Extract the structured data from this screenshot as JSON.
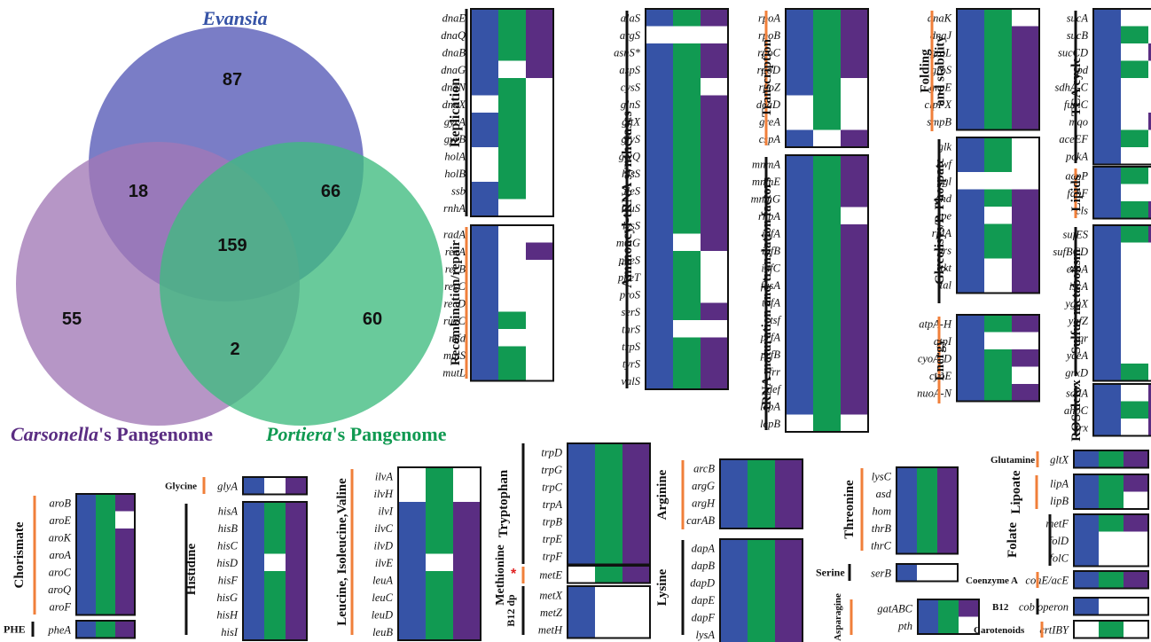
{
  "colors": {
    "evansia": "#3653a6",
    "portiera": "#119a52",
    "carsonella": "#5a2d82",
    "empty": "#ffffff",
    "border": "#111111",
    "accent": "#f07f3a",
    "venn_evansia": "#6b6fc0",
    "venn_carsonella": "#a279b6",
    "venn_portiera": "#3fbb7f"
  },
  "venn": {
    "labels": {
      "evansia": "Evansia",
      "carsonella_italic": "Carsonella",
      "carsonella_rest": "'s Pangenome",
      "portiera_italic": "Portiera",
      "portiera_rest": "'s Pangenome"
    },
    "counts": {
      "evansia_only": "87",
      "evansia_carsonella": "18",
      "evansia_portiera": "66",
      "all_three": "159",
      "carsonella_only": "55",
      "portiera_only": "60",
      "carsonella_portiera": "2"
    }
  },
  "pathways": [
    {
      "category": "Replication",
      "bar": "black",
      "genes": [
        [
          "dnaE",
          "EPC"
        ],
        [
          "dnaQ",
          "EPC"
        ],
        [
          "dnaB",
          "EPC"
        ],
        [
          "dnaG",
          "E_C"
        ],
        [
          "dnaN",
          "EP_"
        ],
        [
          "dnaX",
          "_P_"
        ],
        [
          "gyrA",
          "EP_"
        ],
        [
          "gyrB",
          "EP_"
        ],
        [
          "holA",
          "_P_"
        ],
        [
          "holB",
          "_P_"
        ],
        [
          "ssb",
          "EP_"
        ],
        [
          "rnhA",
          "E__"
        ]
      ]
    },
    {
      "category": "Recombination/repair",
      "bar": "orange",
      "genes": [
        [
          "radA",
          "E__"
        ],
        [
          "recA",
          "E_C"
        ],
        [
          "recB",
          "E__"
        ],
        [
          "recC",
          "E__"
        ],
        [
          "recD",
          "E__"
        ],
        [
          "ruvC",
          "EP_"
        ],
        [
          "mfd",
          "E__"
        ],
        [
          "mutS",
          "EP_"
        ],
        [
          "mutL",
          "EP_"
        ]
      ]
    },
    {
      "category": "Aminoacyl-tRNA synthetases",
      "bar": "black",
      "genes": [
        [
          "alaS",
          "EPC"
        ],
        [
          "argS",
          "___"
        ],
        [
          "asnS*",
          "EPC"
        ],
        [
          "aspS",
          "EPC"
        ],
        [
          "cysS",
          "EP_"
        ],
        [
          "glnS",
          "EPC"
        ],
        [
          "gltX",
          "EPC"
        ],
        [
          "glyS",
          "EPC"
        ],
        [
          "glyQ",
          "EPC"
        ],
        [
          "hisS",
          "EPC"
        ],
        [
          "ileS",
          "EPC"
        ],
        [
          "leuS",
          "EPC"
        ],
        [
          "lysS",
          "EPC"
        ],
        [
          "metG",
          "E_C"
        ],
        [
          "pheS",
          "EP_"
        ],
        [
          "pheT",
          "EP_"
        ],
        [
          "proS",
          "EP_"
        ],
        [
          "serS",
          "EPC"
        ],
        [
          "thrS",
          "E__"
        ],
        [
          "trpS",
          "EPC"
        ],
        [
          "tyrS",
          "EPC"
        ],
        [
          "valS",
          "EPC"
        ]
      ]
    },
    {
      "category": "Transcription",
      "bar": "orange",
      "genes": [
        [
          "rpoA",
          "EPC"
        ],
        [
          "rpoB",
          "EPC"
        ],
        [
          "rpoC",
          "EPC"
        ],
        [
          "rpoD",
          "EPC"
        ],
        [
          "rpoZ",
          "EP_"
        ],
        [
          "deaD",
          "_P_"
        ],
        [
          "greA",
          "_P_"
        ],
        [
          "cspA",
          "E_C"
        ]
      ]
    },
    {
      "category": "tRNA maturation and translation factors",
      "bar": "black",
      "genes": [
        [
          "mnmA",
          "EPC"
        ],
        [
          "mnmE",
          "EPC"
        ],
        [
          "mnmG",
          "EPC"
        ],
        [
          "rnpA",
          "EP_"
        ],
        [
          "infA",
          "EPC"
        ],
        [
          "infB",
          "EPC"
        ],
        [
          "infC",
          "EPC"
        ],
        [
          "fusA",
          "EPC"
        ],
        [
          "tufA",
          "EPC"
        ],
        [
          "tsf",
          "EPC"
        ],
        [
          "prfA",
          "EPC"
        ],
        [
          "prfB",
          "EPC"
        ],
        [
          "frr",
          "EPC"
        ],
        [
          "def",
          "EPC"
        ],
        [
          "lepA",
          "EPC"
        ],
        [
          "lepB",
          "_P_"
        ]
      ]
    },
    {
      "category": "Folding and stability",
      "cat_lines": [
        "Folding",
        "and stability"
      ],
      "bar": "orange",
      "genes": [
        [
          "dnaK",
          "EP_"
        ],
        [
          "dnaJ",
          "EPC"
        ],
        [
          "groL",
          "EPC"
        ],
        [
          "groS",
          "EPC"
        ],
        [
          "grpE",
          "EPC"
        ],
        [
          "clpPX",
          "EPC"
        ],
        [
          "smpB",
          "EPC"
        ]
      ]
    },
    {
      "category": "Glycolisys/P. Phospate",
      "bar": "black",
      "genes": [
        [
          "glk",
          "EP_"
        ],
        [
          "zwf",
          "EP_"
        ],
        [
          "pgl",
          "___"
        ],
        [
          "gnd",
          "EPC"
        ],
        [
          "rpe",
          "E_C"
        ],
        [
          "rplA",
          "EPC"
        ],
        [
          "prs",
          "EPC"
        ],
        [
          "tkt",
          "E_C"
        ],
        [
          "tal",
          "E_C"
        ]
      ]
    },
    {
      "category": "Energy",
      "bar": "orange",
      "genes": [
        [
          "atpA-H",
          "EPC"
        ],
        [
          "atpI",
          "E__"
        ],
        [
          "cyoA-D",
          "EPC"
        ],
        [
          "cyoE",
          "EP_"
        ],
        [
          "nuoA-N",
          "EPC"
        ]
      ]
    },
    {
      "category": "TCA cycle",
      "bar": "black",
      "genes": [
        [
          "sucA",
          "E__"
        ],
        [
          "sucB",
          "EP_"
        ],
        [
          "sucCD",
          "E_C"
        ],
        [
          "lpd",
          "EP_"
        ],
        [
          "sdhA-C",
          "E__"
        ],
        [
          "fumC",
          "E__"
        ],
        [
          "mqo",
          "E_C"
        ],
        [
          "aceEF",
          "EP_"
        ],
        [
          "pckA",
          "E__"
        ]
      ]
    },
    {
      "category": "Lipids",
      "bar": "orange",
      "genes": [
        [
          "acpP",
          "EP_"
        ],
        [
          "fabF",
          "E__"
        ],
        [
          "cls",
          "EPC"
        ]
      ]
    },
    {
      "category": "Sulfur metabolism",
      "bar": "black",
      "genes": [
        [
          "sufES",
          "EPC"
        ],
        [
          "sufBCD",
          "E__"
        ],
        [
          "erpA",
          "E__"
        ],
        [
          "iscA",
          "E__"
        ],
        [
          "yggX",
          "E__"
        ],
        [
          "ygfZ",
          "E__"
        ],
        [
          "sqr",
          "E__"
        ],
        [
          "yceA",
          "E__"
        ],
        [
          "grxD",
          "EP_"
        ]
      ]
    },
    {
      "category": "ROS detox",
      "bar": "black",
      "genes": [
        [
          "sodA",
          "E_C"
        ],
        [
          "ahpC",
          "EPC"
        ],
        [
          "trx",
          "E_C"
        ]
      ]
    },
    {
      "category": "Chorismate",
      "bar": "orange",
      "genes": [
        [
          "aroB",
          "EPC"
        ],
        [
          "aroE",
          "EP_"
        ],
        [
          "aroK",
          "EPC"
        ],
        [
          "aroA",
          "EPC"
        ],
        [
          "aroC",
          "EPC"
        ],
        [
          "aroQ",
          "EPC"
        ],
        [
          "aroF",
          "EPC"
        ]
      ]
    },
    {
      "category": "PHE",
      "bar": "black",
      "genes": [
        [
          "pheA",
          "EPC"
        ]
      ]
    },
    {
      "category": "Glycine",
      "bar": "orange",
      "genes": [
        [
          "glyA",
          "E_C"
        ]
      ]
    },
    {
      "category": "Histidine",
      "bar": "black",
      "genes": [
        [
          "hisA",
          "EPC"
        ],
        [
          "hisB",
          "EPC"
        ],
        [
          "hisC",
          "EPC"
        ],
        [
          "hisD",
          "E_C"
        ],
        [
          "hisF",
          "EPC"
        ],
        [
          "hisG",
          "EPC"
        ],
        [
          "hisH",
          "EPC"
        ],
        [
          "hisI",
          "EPC"
        ]
      ]
    },
    {
      "category": "Leucine, Isoleucine,Valine",
      "bar": "orange",
      "genes": [
        [
          "ilvA",
          "_P_"
        ],
        [
          "ilvH",
          "_P_"
        ],
        [
          "ilvI",
          "EPC"
        ],
        [
          "ilvC",
          "EPC"
        ],
        [
          "ilvD",
          "EPC"
        ],
        [
          "ilvE",
          "E_C"
        ],
        [
          "leuA",
          "EPC"
        ],
        [
          "leuC",
          "EPC"
        ],
        [
          "leuD",
          "EPC"
        ],
        [
          "leuB",
          "EPC"
        ]
      ]
    },
    {
      "category": "Tryptophan",
      "bar": "black",
      "genes": [
        [
          "trpD",
          "EPC"
        ],
        [
          "trpG",
          "EPC"
        ],
        [
          "trpC",
          "EPC"
        ],
        [
          "trpA",
          "EPC"
        ],
        [
          "trpB",
          "EPC"
        ],
        [
          "trpE",
          "EPC"
        ],
        [
          "trpF",
          "EPC"
        ]
      ]
    },
    {
      "category": "Methionine",
      "bar": "orange",
      "star": "*",
      "genes": [
        [
          "metE",
          "_PC"
        ]
      ]
    },
    {
      "category": "B12 dp",
      "bar": "black",
      "genes": [
        [
          "metX",
          "E__"
        ],
        [
          "metZ",
          "E__"
        ],
        [
          "metH",
          "E__"
        ]
      ]
    },
    {
      "category": "Arginine",
      "bar": "orange",
      "genes": [
        [
          "arcB",
          "EPC"
        ],
        [
          "argG",
          "EPC"
        ],
        [
          "argH",
          "EPC"
        ],
        [
          "carAB",
          "EPC"
        ]
      ]
    },
    {
      "category": "Lysine",
      "bar": "black",
      "genes": [
        [
          "dapA",
          "EPC"
        ],
        [
          "dapB",
          "EPC"
        ],
        [
          "dapD",
          "EPC"
        ],
        [
          "dapE",
          "EPC"
        ],
        [
          "dapF",
          "EPC"
        ],
        [
          "lysA",
          "EPC"
        ]
      ]
    },
    {
      "category": "Threonine",
      "bar": "orange",
      "genes": [
        [
          "lysC",
          "EPC"
        ],
        [
          "asd",
          "EPC"
        ],
        [
          "hom",
          "EPC"
        ],
        [
          "thrB",
          "EPC"
        ],
        [
          "thrC",
          "EPC"
        ]
      ]
    },
    {
      "category": "Serine",
      "bar": "black",
      "genes": [
        [
          "serB",
          "E__"
        ]
      ]
    },
    {
      "category": "Asparagine",
      "bar": "orange",
      "genes": [
        [
          "gatABC",
          "EPC"
        ],
        [
          "pth",
          "EP_"
        ]
      ]
    },
    {
      "category": "Glutamine",
      "bar": "orange",
      "genes": [
        [
          "gltX",
          "EPC"
        ]
      ]
    },
    {
      "category": "Lipoate",
      "bar": "orange",
      "genes": [
        [
          "lipA",
          "EPC"
        ],
        [
          "lipB",
          "EP_"
        ]
      ]
    },
    {
      "category": "Folate",
      "bar": "black",
      "genes": [
        [
          "metF",
          "EPC"
        ],
        [
          "folD",
          "E__"
        ],
        [
          "folC",
          "E__"
        ]
      ]
    },
    {
      "category": "Coenzyme A",
      "bar": "orange",
      "genes": [
        [
          "coaE/acE",
          "EPC"
        ]
      ]
    },
    {
      "category": "B12",
      "bar": "black",
      "genes": [
        [
          "cob operon",
          "E__"
        ]
      ]
    },
    {
      "category": "Carotenoids",
      "bar": "orange",
      "genes": [
        [
          "crtIBY",
          "_P_"
        ]
      ]
    }
  ]
}
